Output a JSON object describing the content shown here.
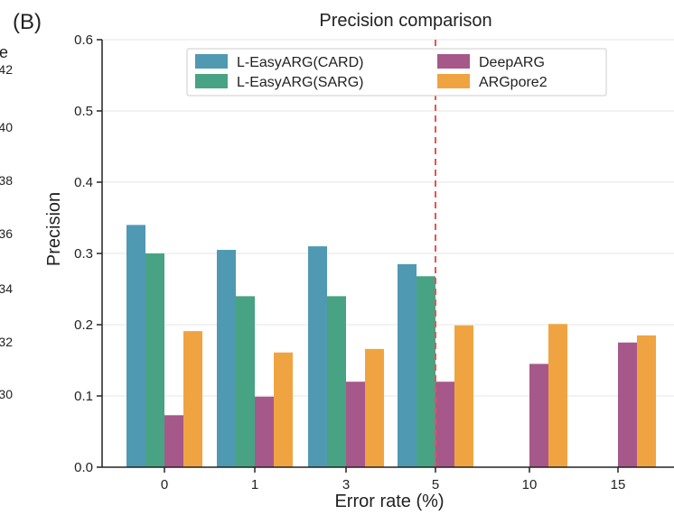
{
  "panel_label": "(B)",
  "left_panel_fragment": {
    "title_fragment": "e",
    "tick_labels": [
      "42",
      "40",
      "38",
      "36",
      "34",
      "32",
      "30"
    ]
  },
  "chart_data": {
    "type": "bar",
    "title": "Precision comparison",
    "xlabel": "Error rate (%)",
    "ylabel": "Precision",
    "ylim": [
      0,
      0.6
    ],
    "yticks": [
      "0.0",
      "0.1",
      "0.2",
      "0.3",
      "0.4",
      "0.5",
      "0.6"
    ],
    "categories": [
      "0",
      "1",
      "3",
      "5",
      "10",
      "15"
    ],
    "grid": "horizontal",
    "legend_position": "top",
    "reference_line": {
      "x": "5",
      "style": "dashed",
      "color": "#e8534f"
    },
    "series": [
      {
        "name": "L-EasyARG(CARD)",
        "color": "#4f99b3",
        "values": [
          0.34,
          0.305,
          0.31,
          0.285,
          null,
          null
        ]
      },
      {
        "name": "L-EasyARG(SARG)",
        "color": "#47a383",
        "values": [
          0.3,
          0.24,
          0.24,
          0.268,
          null,
          null
        ]
      },
      {
        "name": "DeepARG",
        "color": "#a7588a",
        "values": [
          0.073,
          0.099,
          0.12,
          0.12,
          0.145,
          0.175
        ]
      },
      {
        "name": "ARGpore2",
        "color": "#f0a441",
        "values": [
          0.191,
          0.161,
          0.166,
          0.199,
          0.201,
          0.185
        ]
      }
    ]
  }
}
